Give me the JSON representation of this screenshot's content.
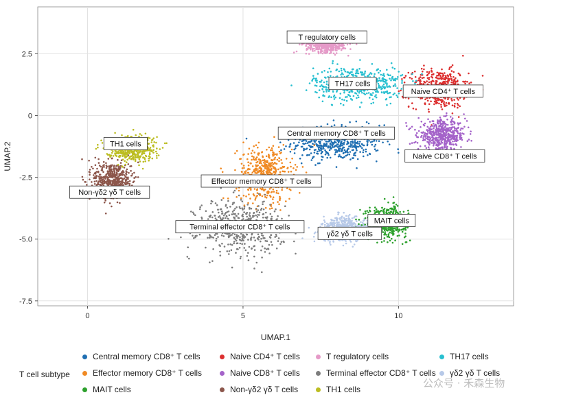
{
  "chart_data": {
    "type": "scatter",
    "xlabel": "UMAP.1",
    "ylabel": "UMAP.2",
    "xlim": [
      -1.6,
      13.7
    ],
    "ylim": [
      -7.7,
      4.4
    ],
    "xticks": [
      0,
      5,
      10
    ],
    "yticks": [
      -7.5,
      -5.0,
      -2.5,
      0,
      2.5
    ],
    "ytick_labels": [
      "-7.5",
      "-5.0",
      "-2.5",
      "0",
      "2.5"
    ],
    "grid": true,
    "legend_title": "T cell subtype",
    "legend_position": "bottom",
    "series": [
      {
        "name": "Central memory CD8⁺ T cells",
        "color": "#1f6fb2",
        "center": [
          8.0,
          -1.1
        ],
        "spread": [
          1.3,
          0.65
        ],
        "annotation": "Central memory CD8⁺ T cells"
      },
      {
        "name": "Naive CD4⁺ T cells",
        "color": "#dc2f2f",
        "center": [
          11.3,
          1.1
        ],
        "spread": [
          0.85,
          0.7
        ],
        "annotation": "Naive CD4⁺ T cells"
      },
      {
        "name": "T regulatory cells",
        "color": "#e59ac8",
        "center": [
          7.7,
          2.9
        ],
        "spread": [
          0.6,
          0.3
        ],
        "annotation": "T regulatory cells"
      },
      {
        "name": "TH17 cells",
        "color": "#27bfd0",
        "center": [
          8.7,
          1.3
        ],
        "spread": [
          1.3,
          0.6
        ],
        "annotation": "TH17 cells"
      },
      {
        "name": "Effector memory CD8⁺ T cells",
        "color": "#f08a24",
        "center": [
          5.7,
          -2.4
        ],
        "spread": [
          0.8,
          1.0
        ],
        "annotation": "Effector memory CD8⁺ T cells"
      },
      {
        "name": "Naive CD8⁺ T cells",
        "color": "#a463c9",
        "center": [
          11.4,
          -0.8
        ],
        "spread": [
          0.7,
          0.55
        ],
        "annotation": "Naive CD8⁺ T cells"
      },
      {
        "name": "Terminal effector CD8⁺ T cells",
        "color": "#7d7d7d",
        "center": [
          4.9,
          -4.5
        ],
        "spread": [
          1.25,
          0.95
        ],
        "annotation": "Terminal effector CD8⁺ T cells"
      },
      {
        "name": "γδ2 γδ T cells",
        "color": "#b7c9e8",
        "center": [
          8.3,
          -4.6
        ],
        "spread": [
          0.7,
          0.45
        ],
        "annotation": "γδ2 γδ T cells"
      },
      {
        "name": "MAIT cells",
        "color": "#2ca02c",
        "center": [
          9.6,
          -4.3
        ],
        "spread": [
          0.6,
          0.55
        ],
        "annotation": "MAIT cells"
      },
      {
        "name": "Non-γδ2 γδ T cells",
        "color": "#8c564b",
        "center": [
          0.8,
          -2.6
        ],
        "spread": [
          0.55,
          0.7
        ],
        "annotation": "Non-γδ2 γδ T cells"
      },
      {
        "name": "TH1 cells",
        "color": "#bcbd22",
        "center": [
          1.4,
          -1.3
        ],
        "spread": [
          0.7,
          0.45
        ],
        "annotation": "TH1 cells"
      }
    ]
  },
  "legend": {
    "title": "T cell subtype",
    "items": [
      {
        "label": "Central memory CD8⁺ T cells",
        "color": "#1f6fb2"
      },
      {
        "label": "Naive CD4⁺ T cells",
        "color": "#dc2f2f"
      },
      {
        "label": "T regulatory cells",
        "color": "#e59ac8"
      },
      {
        "label": "TH17 cells",
        "color": "#27bfd0"
      },
      {
        "label": "Effector memory CD8⁺ T cells",
        "color": "#f08a24"
      },
      {
        "label": "Naive CD8⁺ T cells",
        "color": "#a463c9"
      },
      {
        "label": "Terminal effector CD8⁺ T cells",
        "color": "#7d7d7d"
      },
      {
        "label": "γδ2 γδ T cells",
        "color": "#b7c9e8"
      },
      {
        "label": "MAIT cells",
        "color": "#2ca02c"
      },
      {
        "label": "Non-γδ2 γδ T cells",
        "color": "#8c564b"
      },
      {
        "label": "TH1 cells",
        "color": "#bcbd22"
      }
    ]
  },
  "watermark": "公众号 · 禾森生物"
}
